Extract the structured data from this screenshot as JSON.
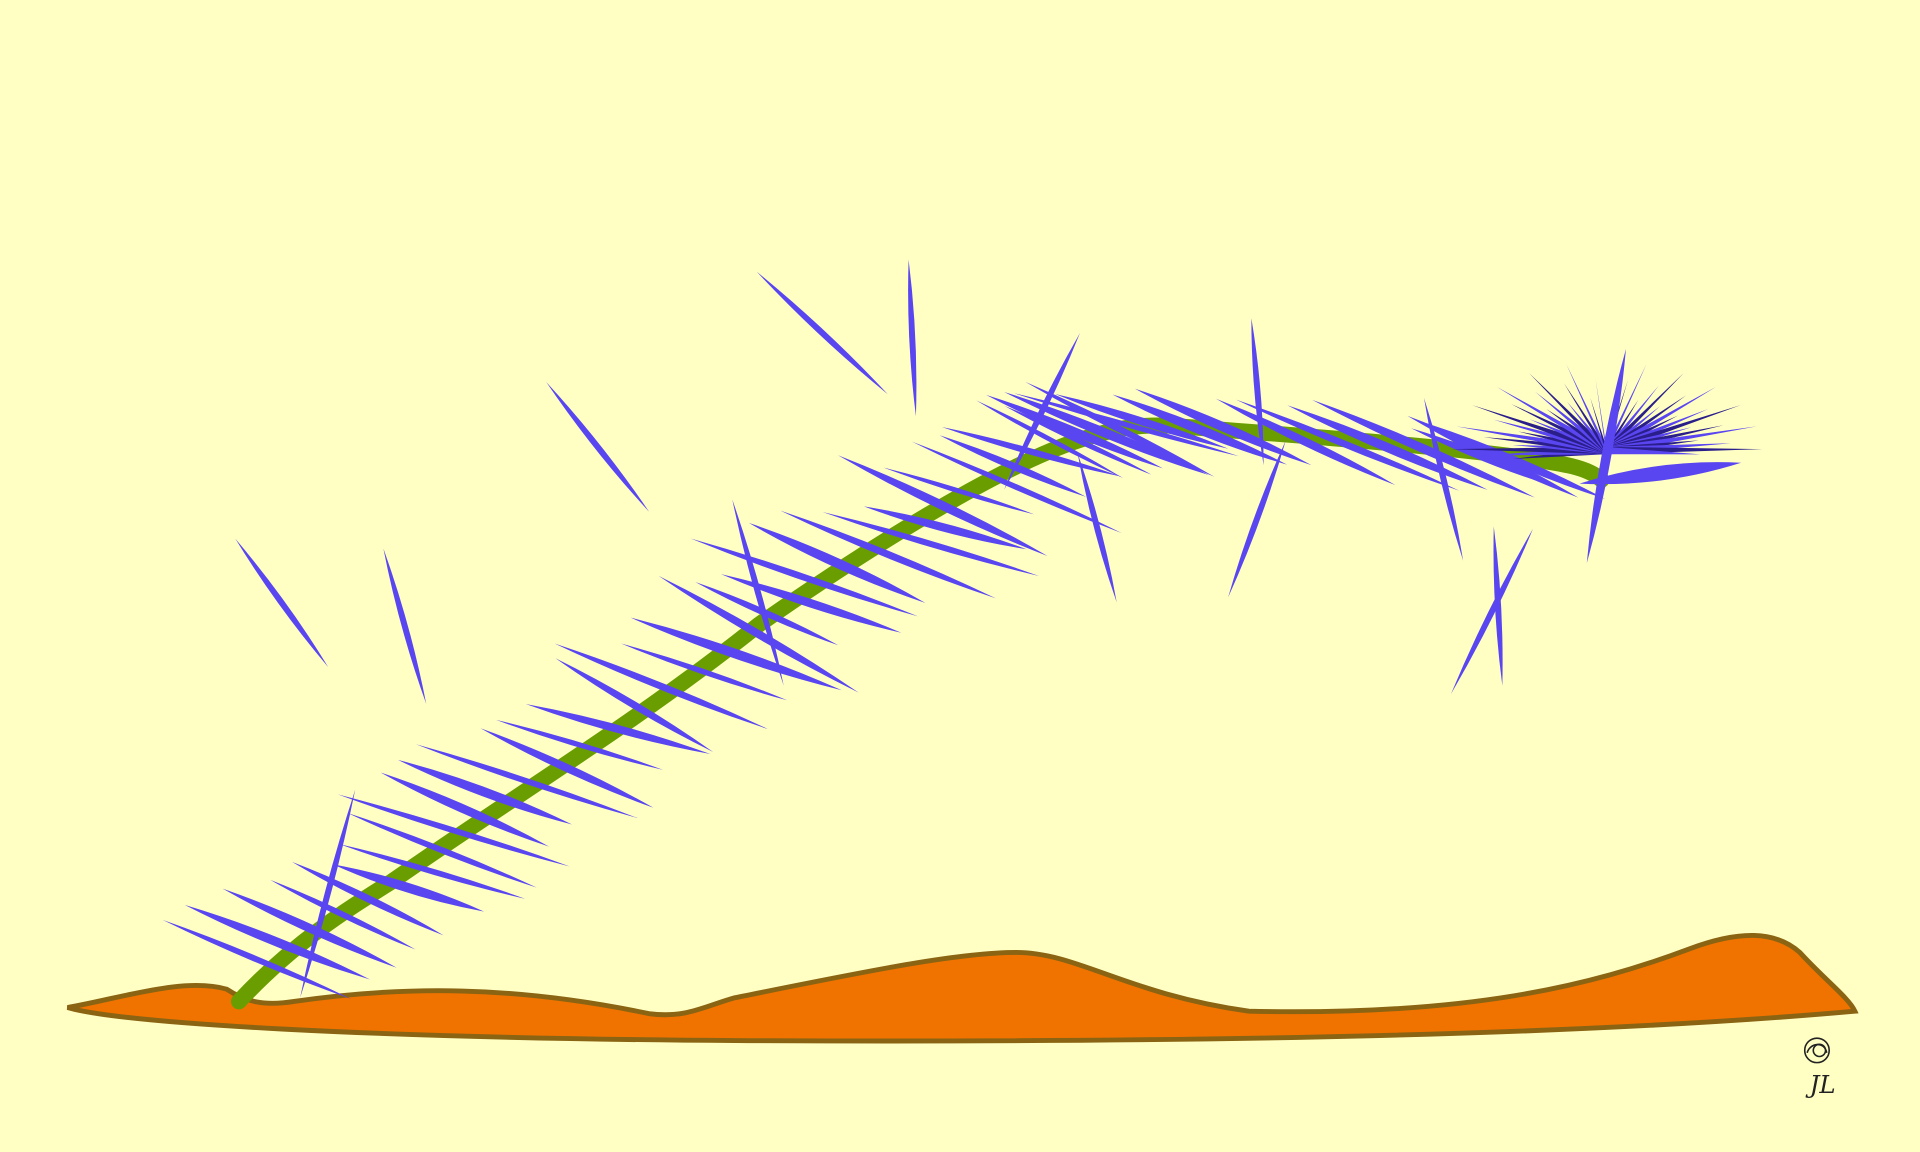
{
  "signature": "JL"
}
